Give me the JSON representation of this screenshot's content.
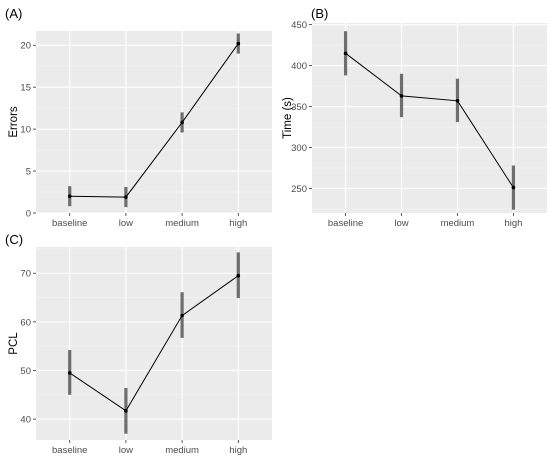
{
  "colors": {
    "panel_background": "#ebebeb",
    "grid_major": "#ffffff",
    "grid_minor": "#f5f5f5",
    "error_bar": "#6e6e6e",
    "line": "#000000",
    "tick_text": "#4d4d4d",
    "text": "#000000"
  },
  "chart_data": [
    {
      "type": "line",
      "panel_label": "(A)",
      "xlabel": "",
      "ylabel": "Errors",
      "categories": [
        "baseline",
        "low",
        "medium",
        "high"
      ],
      "series": [
        {
          "values": [
            2.0,
            1.9,
            10.8,
            20.2
          ],
          "error_low": [
            0.8,
            0.7,
            9.6,
            19.0
          ],
          "error_high": [
            3.2,
            3.1,
            12.0,
            21.4
          ]
        }
      ],
      "ylim": [
        0,
        21.7
      ],
      "yticks": [
        0,
        5,
        10,
        15,
        20
      ],
      "grid": true
    },
    {
      "type": "line",
      "panel_label": "(B)",
      "xlabel": "",
      "ylabel": "Time (s)",
      "categories": [
        "baseline",
        "low",
        "medium",
        "high"
      ],
      "series": [
        {
          "values": [
            415,
            363,
            357,
            251
          ],
          "error_low": [
            388,
            337,
            331,
            224
          ],
          "error_high": [
            442,
            390,
            384,
            278
          ]
        }
      ],
      "ylim": [
        220,
        452
      ],
      "yticks": [
        250,
        300,
        350,
        400,
        450
      ],
      "grid": true
    },
    {
      "type": "line",
      "panel_label": "(C)",
      "xlabel": "",
      "ylabel": "PCL",
      "categories": [
        "baseline",
        "low",
        "medium",
        "high"
      ],
      "series": [
        {
          "values": [
            49.5,
            41.7,
            61.3,
            69.5
          ],
          "error_low": [
            45.0,
            37.0,
            56.7,
            64.9
          ],
          "error_high": [
            54.2,
            46.4,
            66.1,
            74.3
          ]
        }
      ],
      "ylim": [
        35.7,
        75.4
      ],
      "yticks": [
        40,
        50,
        60,
        70
      ],
      "grid": true
    }
  ]
}
